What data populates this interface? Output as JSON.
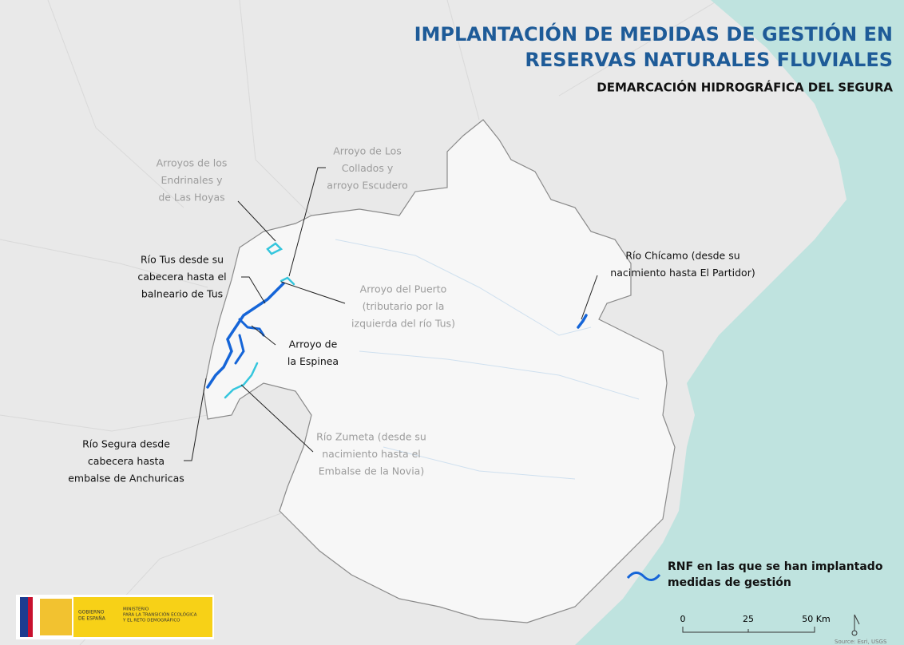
{
  "title": {
    "line1": "IMPLANTACIÓN DE MEDIDAS DE GESTIÓN EN",
    "line2": "RESERVAS NATURALES FLUVIALES"
  },
  "subtitle": "DEMARCACIÓN HIDROGRÁFICA DEL SEGURA",
  "labels": [
    {
      "lines": [
        "Arroyos de los",
        "Endrinales y",
        "de Las Hoyas"
      ],
      "color": "#9c9c9c"
    },
    {
      "lines": [
        "Arroyo de Los",
        "Collados y",
        "arroyo Escudero"
      ],
      "color": "#9c9c9c"
    },
    {
      "lines": [
        "Río Tus desde su",
        "cabecera hasta el",
        "balneario de Tus"
      ],
      "color": "#111111"
    },
    {
      "lines": [
        "Arroyo del Puerto",
        "(tributario por la",
        "izquierda del río Tus)"
      ],
      "color": "#9c9c9c"
    },
    {
      "lines": [
        "Arroyo de",
        "la Espinea"
      ],
      "color": "#111111"
    },
    {
      "lines": [
        "Río Chícamo (desde su",
        "nacimiento hasta El Partidor)"
      ],
      "color": "#111111"
    },
    {
      "lines": [
        "Río Zumeta (desde su",
        "nacimiento hasta el",
        "Embalse de la Novia)"
      ],
      "color": "#9c9c9c"
    },
    {
      "lines": [
        "Río Segura desde",
        "cabecera hasta",
        "embalse de Anchuricas"
      ],
      "color": "#111111"
    }
  ],
  "legend": {
    "lines": [
      "RNF en las que se han implantado",
      "medidas de gestión"
    ]
  },
  "scale_bar": {
    "labels": [
      "0",
      "25",
      "50 Km"
    ]
  },
  "logo": {
    "gobierno": [
      "GOBIERNO",
      "DE ESPAÑA"
    ],
    "ministerio": [
      "MINISTERIO",
      "PARA LA TRANSICIÓN ECOLÓGICA",
      "Y EL RETO DEMOGRÁFICO"
    ]
  },
  "source": "Source: Esri, USGS"
}
